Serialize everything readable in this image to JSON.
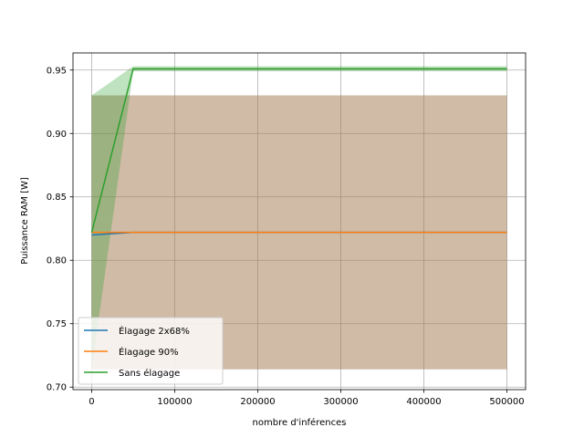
{
  "chart_data": {
    "type": "line",
    "xlabel": "nombre d'inférences",
    "ylabel": "Puissance RAM [W]",
    "xlim": [
      -22500,
      522500
    ],
    "ylim": [
      0.698,
      0.9635
    ],
    "grid": true,
    "legend_position": "lower-left",
    "x_ticks": [
      0,
      100000,
      200000,
      300000,
      400000,
      500000
    ],
    "y_ticks": [
      0.7,
      0.75,
      0.8,
      0.85,
      0.9,
      0.95
    ],
    "x_tick_labels": [
      "0",
      "100000",
      "200000",
      "300000",
      "400000",
      "500000"
    ],
    "y_tick_labels": [
      "0.70",
      "0.75",
      "0.80",
      "0.85",
      "0.90",
      "0.95"
    ],
    "series": [
      {
        "name": "Élagage 2x68%",
        "color": "#1f77b4",
        "x": [
          0,
          50000,
          500000
        ],
        "y": [
          0.82,
          0.822,
          0.822
        ],
        "band_lower": [
          0.714,
          0.714,
          0.714
        ],
        "band_upper": [
          0.93,
          0.93,
          0.93
        ]
      },
      {
        "name": "Élagage 90%",
        "color": "#ff7f0e",
        "x": [
          0,
          50000,
          500000
        ],
        "y": [
          0.822,
          0.822,
          0.822
        ],
        "band_lower": [
          0.714,
          0.714,
          0.714
        ],
        "band_upper": [
          0.93,
          0.93,
          0.93
        ]
      },
      {
        "name": "Sans élagage",
        "color": "#2ca02c",
        "x": [
          0,
          50000,
          500000
        ],
        "y": [
          0.822,
          0.951,
          0.951
        ],
        "band_lower": [
          0.714,
          0.949,
          0.949
        ],
        "band_upper": [
          0.93,
          0.953,
          0.953
        ]
      }
    ]
  }
}
